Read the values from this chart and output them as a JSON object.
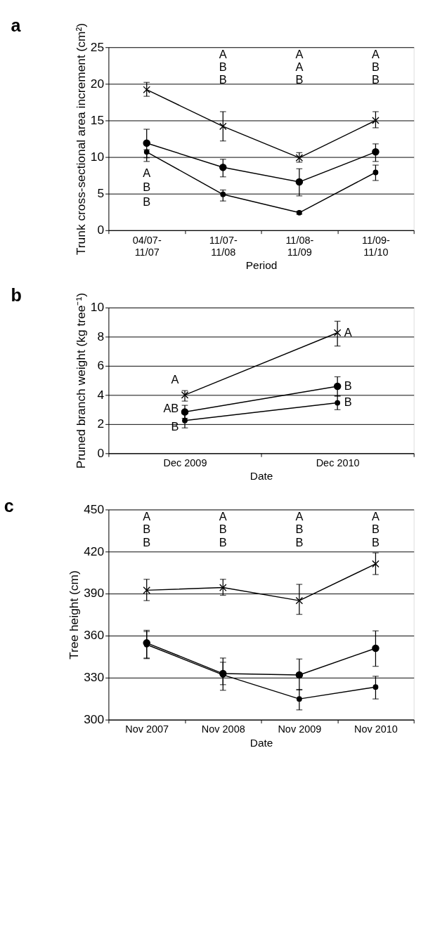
{
  "chart_data": [
    {
      "type": "line",
      "title": "a",
      "xlabel": "Period",
      "ylabel": "Trunk cross-sectional area\nincrement (cm²)",
      "categories": [
        "04/07-\n11/07",
        "11/07-\n11/08",
        "11/08-\n11/09",
        "11/09-\n11/10"
      ],
      "ylim": [
        0,
        25
      ],
      "yticks": [
        0,
        5,
        10,
        15,
        20,
        25
      ],
      "grid": "y",
      "legend": false,
      "series": [
        {
          "color": "#000000",
          "marker": "cross",
          "values": [
            19.2,
            14.2,
            9.9,
            15.0
          ],
          "errors": [
            [
              18.3,
              20.2
            ],
            [
              12.2,
              16.2
            ],
            [
              9.3,
              10.6
            ],
            [
              14.0,
              16.2
            ]
          ]
        },
        {
          "color": "#000000",
          "marker": "circle",
          "values": [
            11.9,
            8.6,
            6.6,
            10.7
          ],
          "errors": [
            [
              9.9,
              13.8
            ],
            [
              7.3,
              9.7
            ],
            [
              4.7,
              8.4
            ],
            [
              9.4,
              11.8
            ]
          ]
        },
        {
          "color": "#000000",
          "marker": "circle",
          "values": [
            10.7,
            4.9,
            2.4,
            7.9
          ],
          "errors": [
            [
              9.4,
              11.0
            ],
            [
              4.0,
              5.5
            ],
            [
              2.2,
              2.6
            ],
            [
              6.8,
              8.9
            ]
          ]
        }
      ],
      "annotations": [
        "A",
        "B",
        "B",
        "A",
        "B",
        "B",
        "A",
        "A",
        "B",
        "A",
        "B",
        "B"
      ]
    },
    {
      "type": "line",
      "title": "b",
      "xlabel": "Date",
      "ylabel": "Pruned branch weight\n(kg tree⁻¹)",
      "categories": [
        "Dec 2009",
        "Dec 2010"
      ],
      "ylim": [
        0,
        10
      ],
      "yticks": [
        0,
        2,
        4,
        6,
        8,
        10
      ],
      "grid": "y",
      "legend": false,
      "series": [
        {
          "color": "#000000",
          "marker": "cross",
          "values": [
            4.0,
            8.27
          ],
          "errors": [
            [
              3.58,
              4.3
            ],
            [
              7.36,
              9.06
            ]
          ]
        },
        {
          "color": "#000000",
          "marker": "circle",
          "values": [
            2.84,
            4.6
          ],
          "errors": [
            [
              2.4,
              3.29
            ],
            [
              3.93,
              5.25
            ]
          ]
        },
        {
          "color": "#000000",
          "marker": "circle",
          "values": [
            2.25,
            3.46
          ],
          "errors": [
            [
              1.74,
              2.7
            ],
            [
              2.99,
              3.93
            ]
          ]
        }
      ],
      "annotations": [
        "A",
        "AB",
        "B",
        "A",
        "B",
        "B"
      ]
    },
    {
      "type": "line",
      "title": "c",
      "xlabel": "Date",
      "ylabel": "Tree height (cm)",
      "categories": [
        "Nov 2007",
        "Nov 2008",
        "Nov 2009",
        "Nov 2010"
      ],
      "ylim": [
        300,
        450
      ],
      "yticks": [
        300,
        330,
        360,
        390,
        420,
        450
      ],
      "grid": "y",
      "legend": false,
      "series": [
        {
          "color": "#000000",
          "marker": "cross",
          "values": [
            392.4,
            394.3,
            385.0,
            411.2
          ],
          "errors": [
            [
              385.0,
              400.2
            ],
            [
              388.8,
              400.2
            ],
            [
              375.2,
              396.6
            ],
            [
              403.6,
              419.1
            ]
          ]
        },
        {
          "color": "#000000",
          "marker": "circle",
          "values": [
            354.8,
            332.9,
            331.9,
            351.0
          ],
          "errors": [
            [
              344.0,
              363.8
            ],
            [
              321.0,
              344.0
            ],
            [
              321.2,
              343.3
            ],
            [
              338.1,
              363.4
            ]
          ]
        },
        {
          "color": "#000000",
          "marker": "circle",
          "values": [
            353.6,
            332.0,
            314.8,
            323.3
          ],
          "errors": [
            [
              343.6,
              362.9
            ],
            [
              325.0,
              341.0
            ],
            [
              307.0,
              321.6
            ],
            [
              314.8,
              331.0
            ]
          ]
        }
      ],
      "annotations": [
        "A",
        "B",
        "B",
        "A",
        "B",
        "B",
        "A",
        "B",
        "B",
        "A",
        "B",
        "B"
      ]
    }
  ]
}
